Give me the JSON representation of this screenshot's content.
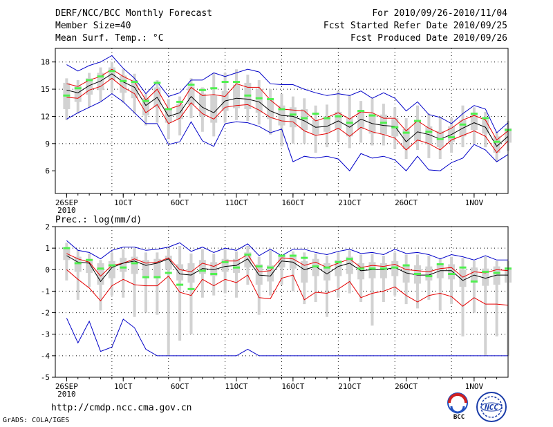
{
  "header": {
    "title": "DERF/NCC/BCC Monthly Forecast",
    "member_size": "Member Size=40",
    "variable": "Mean Surf. Temp.: °C",
    "period": "For 2010/09/26-2010/11/04",
    "start_date": "Fcst Started Refer Date 2010/09/25",
    "produced_date": "Fcst Produced Date 2010/09/26"
  },
  "footer": {
    "url": "http://cmdp.ncc.cma.gov.cn",
    "credit": "GrADS: COLA/IGES",
    "logo_bcc": "BCC",
    "logo_ncc": "NCC"
  },
  "colors": {
    "envelope": "#0000c8",
    "spread": "#e60000",
    "mean": "#000000",
    "box": "#d2d2d2",
    "marker": "#50f050",
    "grid": "#000000"
  },
  "chart_data": [
    {
      "type": "box-ensemble",
      "name": "surface-temperature",
      "title": "Mean Surf. Temp.: °C",
      "ylabel": "°C",
      "ylim": [
        3.5,
        19.5
      ],
      "yticks": [
        6,
        9,
        12,
        15,
        18
      ],
      "xlim": [
        0,
        40
      ],
      "xticks": [
        {
          "x": 1,
          "label": "26SEP",
          "sublabel": "2010"
        },
        {
          "x": 6,
          "label": "1OCT"
        },
        {
          "x": 11,
          "label": "6OCT"
        },
        {
          "x": 16,
          "label": "11OCT"
        },
        {
          "x": 21,
          "label": "16OCT"
        },
        {
          "x": 26,
          "label": "21OCT"
        },
        {
          "x": 31,
          "label": "26OCT"
        },
        {
          "x": 36,
          "label": "31OCT",
          "hidden": true
        },
        {
          "x": 37,
          "label": "1NOV"
        }
      ],
      "grid_x": [
        5,
        10,
        15,
        20,
        25,
        30,
        35
      ],
      "grid_y": [
        9,
        12,
        15,
        18
      ],
      "series": [
        {
          "name": "ensemble-max",
          "color": "#0000c8",
          "values": [
            17.7,
            17.0,
            17.6,
            18.0,
            18.7,
            17.3,
            16.2,
            14.5,
            15.8,
            14.2,
            14.6,
            16.0,
            16.0,
            16.8,
            16.4,
            16.8,
            17.2,
            16.9,
            15.6,
            15.5,
            15.5,
            15.0,
            14.6,
            14.3,
            14.5,
            14.3,
            14.8,
            14.0,
            14.6,
            14.0,
            12.6,
            13.6,
            12.2,
            11.9,
            11.2,
            12.3,
            13.2,
            12.8,
            10.2,
            11.3
          ]
        },
        {
          "name": "spread-upper",
          "color": "#e60000",
          "values": [
            15.6,
            15.3,
            16.0,
            16.4,
            17.2,
            16.4,
            15.8,
            13.8,
            15.0,
            12.8,
            13.2,
            15.2,
            14.3,
            14.4,
            14.2,
            15.6,
            15.2,
            15.2,
            13.8,
            12.8,
            12.7,
            12.6,
            11.5,
            11.9,
            12.4,
            11.7,
            12.5,
            12.4,
            11.8,
            11.8,
            10.4,
            11.5,
            10.7,
            10.1,
            10.7,
            11.6,
            12.1,
            11.6,
            9.4,
            10.4
          ]
        },
        {
          "name": "ensemble-mean",
          "color": "#000000",
          "values": [
            14.9,
            14.6,
            15.4,
            15.9,
            16.7,
            15.8,
            15.2,
            13.2,
            14.1,
            12.0,
            12.4,
            14.2,
            13.0,
            12.4,
            13.7,
            14.0,
            13.9,
            13.6,
            12.6,
            12.1,
            12.0,
            11.5,
            10.8,
            10.9,
            11.5,
            10.8,
            11.7,
            11.2,
            11.0,
            10.9,
            9.2,
            10.3,
            10.0,
            9.5,
            10.0,
            10.7,
            11.3,
            10.8,
            8.7,
            9.8
          ]
        },
        {
          "name": "spread-lower",
          "color": "#e60000",
          "values": [
            14.1,
            14.0,
            14.9,
            15.3,
            16.2,
            15.2,
            14.5,
            12.4,
            13.3,
            11.2,
            11.8,
            13.5,
            12.3,
            11.7,
            13.0,
            13.2,
            13.3,
            12.7,
            11.9,
            11.5,
            11.4,
            10.4,
            9.9,
            10.1,
            10.7,
            9.8,
            10.8,
            10.3,
            10.0,
            9.6,
            8.3,
            9.4,
            9.0,
            8.3,
            9.4,
            9.9,
            10.4,
            9.8,
            8.0,
            9.3
          ]
        },
        {
          "name": "ensemble-min",
          "color": "#0000c8",
          "values": [
            11.7,
            12.4,
            13.0,
            13.6,
            14.5,
            13.6,
            12.4,
            11.2,
            11.2,
            8.9,
            9.2,
            11.4,
            9.3,
            8.7,
            11.2,
            11.4,
            11.3,
            10.9,
            10.2,
            10.6,
            7.0,
            7.6,
            7.4,
            7.6,
            7.3,
            6.0,
            7.9,
            7.4,
            7.6,
            7.2,
            6.0,
            7.6,
            6.1,
            6.0,
            6.9,
            7.4,
            8.9,
            8.3,
            7.0,
            7.8
          ]
        }
      ],
      "boxes": {
        "q_low": [
          12.8,
          13.6,
          14.4,
          14.9,
          16.0,
          14.6,
          14.0,
          12.1,
          13.0,
          11.3,
          11.7,
          13.3,
          12.0,
          11.3,
          12.6,
          12.9,
          12.8,
          12.4,
          11.7,
          11.0,
          10.8,
          10.5,
          10.0,
          10.3,
          10.6,
          9.8,
          10.6,
          10.1,
          10.0,
          9.8,
          8.4,
          9.3,
          8.9,
          8.6,
          9.2,
          9.8,
          10.5,
          10.1,
          8.0,
          9.1
        ],
        "q_high": [
          15.7,
          15.4,
          16.2,
          16.8,
          17.4,
          16.5,
          16.0,
          14.0,
          15.2,
          12.8,
          13.4,
          15.3,
          14.5,
          14.3,
          14.8,
          15.5,
          15.7,
          15.0,
          13.9,
          13.2,
          13.0,
          12.8,
          11.6,
          12.0,
          12.5,
          11.8,
          12.6,
          12.3,
          12.2,
          11.8,
          10.6,
          11.5,
          10.9,
          10.4,
          10.9,
          11.6,
          12.4,
          11.6,
          9.8,
          10.7
        ],
        "w_low": [
          11.6,
          12.3,
          13.0,
          13.7,
          14.6,
          13.5,
          12.3,
          11.0,
          11.3,
          9.5,
          9.9,
          11.8,
          10.3,
          9.8,
          11.3,
          11.6,
          11.5,
          11.1,
          10.0,
          8.7,
          9.0,
          9.0,
          8.0,
          8.6,
          9.2,
          8.5,
          9.1,
          8.8,
          8.8,
          8.4,
          7.3,
          8.3,
          7.4,
          7.3,
          8.0,
          8.6,
          9.0,
          8.6,
          7.0,
          8.2
        ],
        "w_high": [
          16.2,
          16.0,
          16.8,
          17.4,
          18.0,
          17.2,
          16.7,
          14.5,
          16.0,
          13.9,
          14.2,
          16.2,
          15.2,
          16.8,
          16.8,
          17.2,
          16.6,
          16.0,
          15.0,
          14.5,
          14.2,
          14.0,
          13.2,
          13.3,
          14.8,
          14.3,
          13.7,
          14.0,
          13.4,
          13.0,
          11.8,
          13.2,
          12.3,
          12.0,
          11.8,
          13.2,
          13.0,
          12.5,
          10.3,
          11.5
        ],
        "markers": [
          14.3,
          15.1,
          16.0,
          16.4,
          17.0,
          15.9,
          15.8,
          13.7,
          15.7,
          12.8,
          13.6,
          15.5,
          14.9,
          15.1,
          15.8,
          15.8,
          14.3,
          14.0,
          13.9,
          12.8,
          12.2,
          11.8,
          12.3,
          11.8,
          12.0,
          11.3,
          12.6,
          12.1,
          11.3,
          10.8,
          10.2,
          11.5,
          10.3,
          9.5,
          9.7,
          11.1,
          12.3,
          11.8,
          9.2,
          10.5
        ]
      }
    },
    {
      "type": "box-ensemble",
      "name": "precipitation",
      "title": "Prec.: log(mm/d)",
      "ylabel": "log(mm/d)",
      "ylim": [
        -5,
        2
      ],
      "yticks": [
        -5,
        -4,
        -3,
        -2,
        -1,
        0,
        1,
        2
      ],
      "xlim": [
        0,
        40
      ],
      "xticks": [
        {
          "x": 1,
          "label": "26SEP",
          "sublabel": "2010"
        },
        {
          "x": 6,
          "label": "1OCT"
        },
        {
          "x": 11,
          "label": "6OCT"
        },
        {
          "x": 16,
          "label": "11OCT"
        },
        {
          "x": 21,
          "label": "16OCT"
        },
        {
          "x": 26,
          "label": "21OCT"
        },
        {
          "x": 31,
          "label": "26OCT"
        },
        {
          "x": 36,
          "label": "31OCT",
          "hidden": true
        },
        {
          "x": 37,
          "label": "1NOV"
        }
      ],
      "grid_x": [
        5,
        10,
        15,
        20,
        25,
        30,
        35
      ],
      "grid_y": [
        -4,
        -3,
        -2,
        -1,
        0,
        1
      ],
      "series": [
        {
          "name": "ensemble-max",
          "color": "#0000c8",
          "values": [
            1.35,
            0.9,
            0.8,
            0.5,
            0.9,
            1.05,
            1.05,
            0.9,
            0.95,
            1.05,
            1.25,
            0.85,
            1.05,
            0.8,
            1.0,
            0.9,
            1.2,
            0.65,
            0.95,
            0.65,
            0.95,
            0.95,
            0.8,
            0.7,
            0.85,
            0.95,
            0.75,
            0.8,
            0.7,
            0.95,
            0.75,
            0.8,
            0.7,
            0.5,
            0.7,
            0.6,
            0.45,
            0.65,
            0.45,
            0.45
          ]
        },
        {
          "name": "spread-upper",
          "color": "#e60000",
          "values": [
            0.75,
            0.5,
            0.35,
            -0.3,
            0.2,
            0.3,
            0.5,
            0.3,
            0.35,
            0.55,
            0.0,
            -0.1,
            0.3,
            0.15,
            0.4,
            0.4,
            0.7,
            -0.1,
            -0.05,
            0.55,
            0.5,
            0.2,
            0.35,
            0.1,
            0.3,
            0.5,
            0.1,
            0.2,
            0.15,
            0.25,
            0.0,
            -0.05,
            -0.1,
            0.05,
            0.1,
            -0.35,
            -0.1,
            -0.15,
            0.0,
            -0.05
          ]
        },
        {
          "name": "ensemble-mean",
          "color": "#000000",
          "values": [
            0.65,
            0.35,
            0.3,
            -0.55,
            0.1,
            0.3,
            0.4,
            0.2,
            0.3,
            0.5,
            -0.2,
            -0.25,
            0.05,
            0.0,
            0.15,
            0.2,
            0.5,
            -0.25,
            -0.3,
            0.4,
            0.35,
            0.0,
            0.15,
            -0.2,
            0.15,
            0.3,
            -0.05,
            0.0,
            0.0,
            0.1,
            -0.15,
            -0.25,
            -0.25,
            -0.05,
            -0.05,
            -0.5,
            -0.25,
            -0.4,
            -0.25,
            -0.25
          ]
        },
        {
          "name": "spread-lower",
          "color": "#e60000",
          "values": [
            0.0,
            -0.45,
            -0.85,
            -1.45,
            -0.75,
            -0.45,
            -0.7,
            -0.75,
            -0.75,
            -0.3,
            -1.05,
            -1.2,
            -0.45,
            -0.75,
            -0.45,
            -0.6,
            -0.25,
            -1.3,
            -1.35,
            -0.4,
            -0.25,
            -1.4,
            -1.05,
            -1.1,
            -0.9,
            -0.55,
            -1.3,
            -1.1,
            -1.0,
            -0.8,
            -1.2,
            -1.5,
            -1.2,
            -1.1,
            -1.25,
            -1.7,
            -1.3,
            -1.6,
            -1.6,
            -1.65
          ]
        },
        {
          "name": "ensemble-min",
          "color": "#0000c8",
          "values": [
            -2.25,
            -3.4,
            -2.4,
            -3.8,
            -3.6,
            -2.3,
            -2.7,
            -3.7,
            -4.0,
            -4.0,
            -4.0,
            -4.0,
            -4.0,
            -4.0,
            -4.0,
            -4.0,
            -3.7,
            -4.0,
            -4.0,
            -4.0,
            -4.0,
            -4.0,
            -4.0,
            -4.0,
            -4.0,
            -4.0,
            -4.0,
            -4.0,
            -4.0,
            -4.0,
            -4.0,
            -4.0,
            -4.0,
            -4.0,
            -4.0,
            -4.0,
            -4.0,
            -4.0,
            -4.0,
            -4.0
          ]
        }
      ],
      "boxes": {
        "q_low": [
          0.45,
          -0.1,
          -0.15,
          -0.7,
          -0.4,
          -0.1,
          -0.2,
          -0.3,
          -0.4,
          0.0,
          -0.5,
          -0.6,
          -0.2,
          -0.3,
          -0.1,
          -0.15,
          0.1,
          -0.7,
          -0.55,
          0.1,
          0.05,
          -0.6,
          -0.3,
          -0.5,
          -0.3,
          -0.2,
          -0.45,
          -0.4,
          -0.4,
          -0.3,
          -0.6,
          -0.65,
          -0.5,
          -0.4,
          -0.45,
          -0.8,
          -0.6,
          -0.75,
          -0.7,
          -0.6
        ],
        "q_high": [
          1.0,
          0.6,
          0.5,
          0.3,
          0.4,
          0.55,
          0.6,
          0.45,
          0.5,
          0.65,
          0.25,
          0.3,
          0.45,
          0.35,
          0.5,
          0.5,
          0.8,
          0.25,
          0.2,
          0.65,
          0.6,
          0.4,
          0.5,
          0.3,
          0.45,
          0.6,
          0.3,
          0.35,
          0.3,
          0.4,
          0.2,
          0.2,
          0.15,
          0.25,
          0.25,
          0.0,
          0.1,
          0.05,
          0.15,
          0.1
        ],
        "w_low": [
          -0.5,
          -1.4,
          -0.8,
          -1.9,
          -1.2,
          -1.3,
          -2.2,
          -2.0,
          -2.1,
          -4.0,
          -3.3,
          -3.0,
          -1.3,
          -1.2,
          -1.1,
          -1.3,
          -0.7,
          -2.1,
          -1.2,
          -0.7,
          -1.0,
          -1.6,
          -1.5,
          -2.2,
          -1.3,
          -1.1,
          -1.5,
          -2.6,
          -1.5,
          -1.2,
          -1.6,
          -1.8,
          -1.4,
          -1.9,
          -1.6,
          -3.1,
          -2.0,
          -4.0,
          -3.1,
          -4.0
        ],
        "w_high": [
          1.25,
          0.9,
          0.75,
          0.45,
          0.8,
          0.95,
          1.0,
          0.8,
          0.8,
          1.0,
          1.1,
          0.75,
          0.95,
          0.75,
          0.95,
          0.85,
          1.1,
          0.6,
          0.9,
          0.6,
          0.85,
          0.8,
          0.75,
          0.65,
          0.8,
          0.9,
          0.7,
          0.75,
          0.65,
          0.8,
          0.7,
          0.7,
          0.65,
          0.5,
          0.6,
          0.55,
          0.4,
          0.6,
          0.4,
          0.4
        ],
        "markers": [
          1.0,
          0.3,
          0.45,
          0.05,
          0.2,
          0.1,
          0.3,
          -0.35,
          -0.35,
          -0.15,
          -0.7,
          -0.9,
          -0.05,
          -0.2,
          0.35,
          0.1,
          0.7,
          0.15,
          0.1,
          0.65,
          0.65,
          0.55,
          0.15,
          0.1,
          0.35,
          0.5,
          0.05,
          0.05,
          0.05,
          0.1,
          0.2,
          -0.2,
          -0.3,
          0.25,
          -0.2,
          0.1,
          -0.55,
          -0.1,
          -0.15,
          0.05
        ]
      }
    }
  ]
}
